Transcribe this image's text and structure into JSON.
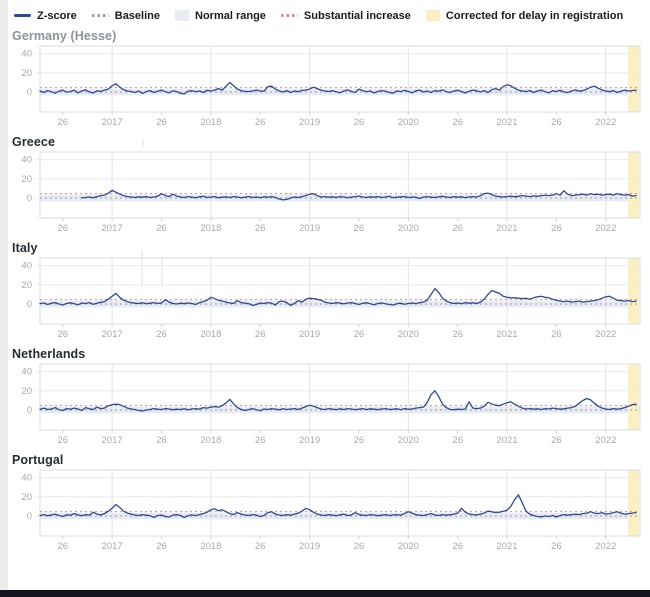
{
  "legend": {
    "items": [
      {
        "label": "Z-score",
        "swatch": "line",
        "color": "#2b4a9c"
      },
      {
        "label": "Baseline",
        "swatch": "dashed",
        "color": "#9a9fa5"
      },
      {
        "label": "Normal range",
        "swatch": "box",
        "color": "#e8ebf1"
      },
      {
        "label": "Substantial increase",
        "swatch": "dashed",
        "color": "#df8a8a"
      },
      {
        "label": "Corrected for delay in registration",
        "swatch": "box",
        "color": "#faf0c2"
      }
    ]
  },
  "colors": {
    "zscore": "#2b4a9c",
    "baseline": "#9a9fa5",
    "normal_range": "#e8ebf1",
    "substantial_increase": "#df8a8a",
    "corrected": "#faf0c2",
    "grid": "#ebebeb",
    "year_grid": "#e3e3e3",
    "border": "#dcdcdc",
    "tick_text": "#a6aab0",
    "bottom_bar": "#17131c",
    "left_strip": "#ededed"
  },
  "axis": {
    "y_ticks": [
      40,
      20,
      0
    ],
    "x_tick_labels": [
      "26",
      "2017",
      "26",
      "2018",
      "26",
      "2019",
      "26",
      "2020",
      "26",
      "2021",
      "26",
      "2022"
    ],
    "x_tick_indices": [
      6,
      19,
      32,
      45,
      58,
      71,
      84,
      97,
      110,
      123,
      136,
      149
    ],
    "x_step": "2 weeks",
    "x_start": "2016-W14"
  },
  "chart_data": [
    {
      "type": "line",
      "title": "Germany (Hesse)",
      "ylabel": "Z-score",
      "ylim": [
        -20,
        45
      ],
      "baseline": 0,
      "substantial_increase": 4.5,
      "normal_range": [
        -3.5,
        3.5
      ],
      "values": [
        1.0,
        -0.5,
        1.5,
        0.3,
        -1.2,
        0.8,
        2.0,
        -0.3,
        0.5,
        1.8,
        -0.8,
        1.0,
        2.2,
        0.0,
        -1.0,
        1.2,
        0.5,
        2.0,
        3.0,
        6.5,
        8.5,
        5.0,
        2.5,
        1.0,
        0.5,
        -0.5,
        1.0,
        -1.5,
        0.5,
        1.5,
        -0.5,
        0.8,
        2.0,
        0.3,
        -0.8,
        1.2,
        0.5,
        -1.5,
        -2.0,
        0.8,
        1.5,
        0.2,
        1.0,
        -0.5,
        1.8,
        1.0,
        2.0,
        3.5,
        2.0,
        6.0,
        10.0,
        6.5,
        3.0,
        1.5,
        0.5,
        0.5,
        1.0,
        2.0,
        1.0,
        0.8,
        5.5,
        6.0,
        3.0,
        1.0,
        0.0,
        1.5,
        -0.5,
        1.0,
        0.3,
        1.8,
        2.0,
        3.0,
        5.0,
        3.5,
        2.0,
        1.0,
        0.5,
        1.2,
        0.3,
        -0.8,
        1.0,
        2.2,
        0.5,
        -0.5,
        3.0,
        1.5,
        0.2,
        1.0,
        -1.0,
        0.5,
        1.5,
        0.8,
        -0.5,
        -1.2,
        1.0,
        0.3,
        1.8,
        0.5,
        -0.8,
        1.2,
        2.0,
        0.0,
        1.0,
        -0.5,
        1.5,
        0.8,
        2.2,
        0.3,
        -0.5,
        1.0,
        1.8,
        0.5,
        -1.0,
        0.8,
        2.0,
        1.2,
        0.0,
        1.5,
        -0.5,
        2.5,
        3.5,
        2.0,
        5.5,
        7.5,
        6.5,
        4.0,
        2.0,
        1.0,
        0.5,
        1.5,
        -0.5,
        1.0,
        2.0,
        0.3,
        -0.8,
        1.2,
        0.5,
        1.8,
        0.0,
        -0.5,
        1.0,
        2.2,
        0.8,
        1.5,
        3.0,
        5.0,
        6.0,
        4.0,
        2.0,
        1.0,
        0.3,
        1.5,
        -0.5,
        0.8,
        2.0,
        1.0,
        1.5,
        2.0
      ]
    },
    {
      "type": "line",
      "title": "Greece",
      "ylabel": "Z-score",
      "ylim": [
        -20,
        45
      ],
      "baseline": 0,
      "substantial_increase": 4.5,
      "normal_range": [
        -3.5,
        3.5
      ],
      "values": [
        null,
        null,
        null,
        null,
        null,
        null,
        null,
        null,
        null,
        null,
        null,
        0.3,
        0.5,
        1.0,
        0.2,
        1.5,
        2.5,
        3.0,
        5.0,
        8.0,
        6.0,
        4.0,
        2.5,
        1.5,
        1.0,
        0.5,
        1.2,
        0.8,
        1.5,
        0.5,
        1.0,
        2.0,
        4.5,
        2.5,
        1.5,
        4.0,
        2.0,
        1.0,
        0.5,
        1.5,
        0.8,
        0.2,
        1.2,
        1.8,
        0.5,
        1.0,
        1.5,
        0.3,
        0.8,
        1.2,
        0.5,
        1.5,
        1.0,
        0.2,
        0.8,
        1.5,
        0.5,
        1.0,
        0.3,
        1.2,
        0.8,
        1.5,
        0.5,
        -1.0,
        -2.0,
        -1.5,
        0.0,
        1.0,
        0.5,
        1.5,
        2.5,
        4.0,
        4.5,
        2.5,
        1.0,
        1.5,
        0.8,
        1.2,
        0.5,
        1.5,
        1.0,
        0.3,
        0.8,
        1.5,
        2.0,
        1.0,
        0.5,
        1.2,
        0.8,
        1.5,
        0.5,
        1.0,
        1.8,
        0.3,
        0.8,
        1.2,
        1.5,
        0.5,
        1.0,
        0.8,
        -0.5,
        1.0,
        1.5,
        0.8,
        0.5,
        1.2,
        1.8,
        1.0,
        0.5,
        1.5,
        0.8,
        1.2,
        0.3,
        1.0,
        1.5,
        0.8,
        2.5,
        4.5,
        5.0,
        3.5,
        2.0,
        1.5,
        1.0,
        1.5,
        2.0,
        1.2,
        1.8,
        2.5,
        2.0,
        1.5,
        2.2,
        1.8,
        2.5,
        3.0,
        2.5,
        3.0,
        4.5,
        3.0,
        7.5,
        4.0,
        2.5,
        3.0,
        3.5,
        4.0,
        3.0,
        4.5,
        3.5,
        4.0,
        3.0,
        3.5,
        4.0,
        3.0,
        4.5,
        3.5,
        3.0,
        3.5,
        2.0,
        2.5
      ]
    },
    {
      "type": "line",
      "title": "Italy",
      "ylabel": "Z-score",
      "ylim": [
        -20,
        45
      ],
      "baseline": 0,
      "substantial_increase": 4.5,
      "normal_range": [
        -3.5,
        3.5
      ],
      "values": [
        0.5,
        1.0,
        -0.5,
        0.8,
        1.5,
        0.0,
        -1.0,
        0.5,
        1.2,
        0.3,
        -0.8,
        1.0,
        0.5,
        1.5,
        -0.3,
        0.8,
        1.8,
        2.5,
        5.0,
        8.0,
        11.0,
        7.0,
        4.0,
        2.5,
        1.5,
        0.8,
        0.5,
        1.2,
        0.3,
        0.8,
        1.5,
        0.5,
        1.0,
        4.5,
        2.0,
        0.5,
        0.0,
        0.8,
        0.3,
        1.0,
        0.5,
        -0.5,
        1.5,
        2.5,
        4.0,
        7.0,
        5.5,
        4.0,
        3.0,
        2.0,
        1.0,
        0.5,
        3.5,
        1.5,
        0.8,
        0.3,
        -1.5,
        -0.5,
        1.0,
        0.5,
        1.5,
        0.8,
        -1.0,
        2.5,
        3.0,
        1.5,
        -1.5,
        0.5,
        3.5,
        2.0,
        5.0,
        6.0,
        5.5,
        5.0,
        4.0,
        2.0,
        1.0,
        0.5,
        1.5,
        0.8,
        0.2,
        1.0,
        1.5,
        0.5,
        -0.5,
        0.8,
        1.2,
        0.3,
        -0.8,
        0.5,
        1.0,
        0.2,
        -0.5,
        -1.0,
        0.3,
        0.8,
        -0.3,
        0.5,
        1.0,
        0.3,
        1.5,
        2.0,
        4.0,
        10.0,
        16.0,
        12.0,
        6.0,
        3.0,
        1.5,
        0.5,
        1.0,
        0.3,
        1.5,
        0.8,
        1.2,
        0.5,
        2.0,
        5.0,
        10.0,
        14.0,
        12.5,
        11.0,
        8.0,
        7.0,
        6.5,
        6.5,
        6.0,
        5.5,
        6.0,
        5.0,
        6.5,
        7.5,
        8.0,
        7.0,
        6.5,
        5.0,
        4.0,
        3.0,
        2.5,
        3.0,
        2.0,
        2.5,
        3.0,
        2.0,
        2.5,
        3.0,
        3.5,
        4.5,
        6.0,
        7.5,
        8.0,
        6.0,
        4.0,
        3.5,
        3.0,
        3.5,
        2.5,
        3.0
      ]
    },
    {
      "type": "line",
      "title": "Netherlands",
      "ylabel": "Z-score",
      "ylim": [
        -20,
        45
      ],
      "baseline": 0,
      "substantial_increase": 4.5,
      "normal_range": [
        -3.5,
        3.5
      ],
      "values": [
        0.8,
        2.0,
        0.5,
        1.0,
        2.5,
        0.3,
        -0.5,
        1.5,
        0.8,
        2.0,
        1.0,
        -0.5,
        2.5,
        1.2,
        0.5,
        3.0,
        1.5,
        2.0,
        4.5,
        5.5,
        6.0,
        5.5,
        4.0,
        2.0,
        1.0,
        0.5,
        -0.5,
        -1.0,
        0.0,
        0.5,
        1.5,
        0.8,
        0.5,
        1.5,
        1.0,
        0.3,
        0.8,
        0.5,
        1.2,
        0.3,
        1.0,
        1.5,
        0.8,
        2.5,
        2.0,
        3.0,
        3.5,
        3.0,
        4.5,
        7.5,
        11.0,
        6.5,
        2.5,
        0.5,
        -0.5,
        0.5,
        1.5,
        0.3,
        -0.8,
        1.0,
        0.5,
        1.5,
        0.8,
        0.3,
        1.2,
        0.5,
        1.0,
        1.5,
        0.5,
        2.0,
        3.5,
        5.0,
        4.0,
        2.5,
        1.0,
        0.5,
        1.5,
        0.8,
        0.3,
        1.2,
        0.5,
        1.5,
        1.0,
        0.3,
        0.8,
        1.5,
        0.5,
        1.2,
        0.8,
        0.3,
        1.0,
        1.5,
        0.5,
        0.8,
        1.2,
        0.3,
        1.5,
        0.8,
        1.0,
        2.0,
        2.5,
        3.0,
        8.0,
        16.0,
        20.0,
        14.0,
        6.0,
        2.5,
        0.5,
        0.3,
        0.8,
        0.5,
        1.0,
        8.5,
        2.0,
        1.5,
        2.0,
        4.0,
        8.0,
        6.5,
        5.0,
        4.5,
        6.0,
        7.5,
        8.5,
        6.0,
        4.0,
        2.0,
        1.0,
        1.5,
        0.8,
        1.2,
        0.5,
        1.5,
        1.0,
        2.0,
        1.5,
        0.8,
        1.2,
        2.0,
        2.5,
        4.0,
        7.0,
        10.0,
        12.0,
        10.5,
        7.0,
        4.0,
        2.0,
        1.0,
        0.5,
        1.5,
        0.8,
        1.5,
        2.5,
        4.0,
        5.5,
        6.0
      ]
    },
    {
      "type": "line",
      "title": "Portugal",
      "ylabel": "Z-score",
      "ylim": [
        -20,
        45
      ],
      "baseline": 0,
      "substantial_increase": 4.5,
      "normal_range": [
        -3.5,
        3.5
      ],
      "values": [
        0.5,
        1.5,
        0.3,
        1.0,
        2.0,
        0.5,
        -0.5,
        1.2,
        0.8,
        2.5,
        1.0,
        0.3,
        1.5,
        0.8,
        4.0,
        2.0,
        1.0,
        2.5,
        5.0,
        8.0,
        12.0,
        9.0,
        5.0,
        3.0,
        2.0,
        1.0,
        0.5,
        1.5,
        0.8,
        0.3,
        -1.5,
        0.5,
        1.0,
        -0.5,
        -1.0,
        0.8,
        1.5,
        0.5,
        -1.5,
        0.3,
        1.0,
        0.5,
        1.5,
        2.5,
        4.0,
        6.5,
        7.5,
        5.5,
        6.5,
        4.5,
        2.5,
        1.5,
        3.5,
        2.0,
        1.0,
        0.5,
        1.5,
        0.8,
        -0.5,
        0.5,
        3.5,
        4.5,
        2.0,
        1.0,
        0.5,
        1.5,
        0.8,
        2.0,
        3.0,
        5.0,
        8.0,
        6.5,
        4.0,
        2.0,
        1.0,
        0.5,
        1.5,
        0.8,
        0.3,
        1.2,
        2.0,
        0.5,
        1.0,
        3.5,
        1.5,
        0.8,
        0.5,
        1.5,
        1.0,
        0.3,
        0.8,
        1.5,
        0.5,
        1.0,
        1.5,
        0.8,
        2.5,
        4.5,
        3.0,
        1.5,
        0.8,
        0.5,
        1.5,
        2.5,
        1.0,
        0.5,
        1.5,
        0.8,
        1.2,
        2.0,
        3.0,
        8.0,
        4.0,
        2.0,
        1.5,
        1.0,
        2.0,
        3.0,
        5.0,
        4.5,
        3.5,
        4.0,
        5.0,
        6.0,
        10.0,
        17.0,
        22.0,
        14.0,
        5.0,
        2.0,
        0.5,
        -0.5,
        -1.0,
        0.0,
        -0.5,
        0.5,
        -1.0,
        0.5,
        1.5,
        0.8,
        1.5,
        2.0,
        1.5,
        2.5,
        3.0,
        4.5,
        3.0,
        2.5,
        3.5,
        2.0,
        2.5,
        3.5,
        4.5,
        3.0,
        2.0,
        2.5,
        3.0,
        3.5
      ]
    }
  ]
}
